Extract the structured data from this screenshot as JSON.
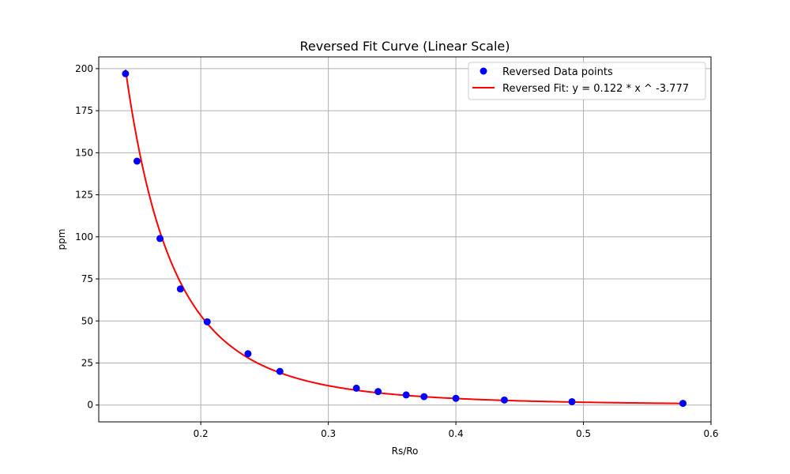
{
  "chart_data": {
    "type": "scatter",
    "title": "Reversed Fit Curve (Linear Scale)",
    "xlabel": "Rs/Ro",
    "ylabel": "ppm",
    "xlim": [
      0.12,
      0.6
    ],
    "ylim": [
      -10,
      207
    ],
    "xticks": [
      0.2,
      0.3,
      0.4,
      0.5,
      0.6
    ],
    "xtick_labels": [
      "0.2",
      "0.3",
      "0.4",
      "0.5",
      "0.6"
    ],
    "yticks": [
      0,
      25,
      50,
      75,
      100,
      125,
      150,
      175,
      200
    ],
    "ytick_labels": [
      "0",
      "25",
      "50",
      "75",
      "100",
      "125",
      "150",
      "175",
      "200"
    ],
    "grid": true,
    "legend_position": "top-right",
    "series": [
      {
        "name": "Reversed Data points",
        "kind": "scatter",
        "color": "#0000ff",
        "x": [
          0.141,
          0.15,
          0.168,
          0.184,
          0.205,
          0.237,
          0.262,
          0.322,
          0.339,
          0.361,
          0.375,
          0.4,
          0.438,
          0.491,
          0.578
        ],
        "y": [
          197,
          145,
          99,
          69,
          49.5,
          30.5,
          20,
          10,
          8,
          6,
          5,
          4,
          3,
          2,
          1
        ]
      },
      {
        "name": "Reversed Fit: y = 0.122 * x ^ -3.777",
        "kind": "line",
        "color": "#ff0000",
        "coefficient": 0.122,
        "exponent": -3.777,
        "x_range": [
          0.141,
          0.578
        ]
      }
    ]
  }
}
